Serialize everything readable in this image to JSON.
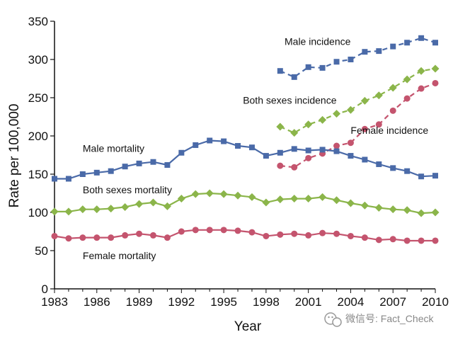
{
  "chart_data": {
    "type": "line",
    "xlabel": "Year",
    "ylabel": "Rate per 100,000",
    "xlim": [
      1983,
      2010
    ],
    "ylim": [
      0,
      350
    ],
    "x_ticks": [
      "1983",
      "1986",
      "1989",
      "1992",
      "1995",
      "1998",
      "2001",
      "2004",
      "2007",
      "2010"
    ],
    "y_ticks": [
      "0",
      "50",
      "100",
      "150",
      "200",
      "250",
      "300",
      "350"
    ],
    "series": [
      {
        "name": "Male incidence",
        "color": "#4a6aa8",
        "marker": "square",
        "dashed": true,
        "x": [
          1999,
          2000,
          2001,
          2002,
          2003,
          2004,
          2005,
          2006,
          2007,
          2008,
          2009,
          2010
        ],
        "values": [
          285,
          277,
          290,
          289,
          297,
          300,
          310,
          311,
          317,
          322,
          328,
          322
        ]
      },
      {
        "name": "Both sexes incidence",
        "color": "#8bb54a",
        "marker": "diamond",
        "dashed": true,
        "x": [
          1999,
          2000,
          2001,
          2002,
          2003,
          2004,
          2005,
          2006,
          2007,
          2008,
          2009,
          2010
        ],
        "values": [
          212,
          204,
          215,
          221,
          229,
          234,
          246,
          253,
          263,
          274,
          285,
          288
        ]
      },
      {
        "name": "Female incidence",
        "color": "#c4546e",
        "marker": "circle",
        "dashed": true,
        "x": [
          1999,
          2000,
          2001,
          2002,
          2003,
          2004,
          2005,
          2006,
          2007,
          2008,
          2009,
          2010
        ],
        "values": [
          161,
          159,
          171,
          177,
          187,
          191,
          209,
          215,
          233,
          249,
          262,
          269
        ]
      },
      {
        "name": "Male mortality",
        "color": "#4a6aa8",
        "marker": "square",
        "dashed": false,
        "x": [
          1983,
          1984,
          1985,
          1986,
          1987,
          1988,
          1989,
          1990,
          1991,
          1992,
          1993,
          1994,
          1995,
          1996,
          1997,
          1998,
          1999,
          2000,
          2001,
          2002,
          2003,
          2004,
          2005,
          2006,
          2007,
          2008,
          2009,
          2010
        ],
        "values": [
          144,
          144,
          150,
          152,
          154,
          160,
          164,
          166,
          162,
          178,
          188,
          194,
          193,
          187,
          185,
          174,
          178,
          183,
          181,
          182,
          180,
          174,
          169,
          163,
          158,
          154,
          147,
          148
        ]
      },
      {
        "name": "Both sexes mortality",
        "color": "#8bb54a",
        "marker": "diamond",
        "dashed": false,
        "x": [
          1983,
          1984,
          1985,
          1986,
          1987,
          1988,
          1989,
          1990,
          1991,
          1992,
          1993,
          1994,
          1995,
          1996,
          1997,
          1998,
          1999,
          2000,
          2001,
          2002,
          2003,
          2004,
          2005,
          2006,
          2007,
          2008,
          2009,
          2010
        ],
        "values": [
          101,
          101,
          104,
          104,
          105,
          107,
          111,
          113,
          108,
          118,
          124,
          125,
          124,
          122,
          120,
          113,
          117,
          118,
          118,
          120,
          116,
          112,
          109,
          106,
          104,
          103,
          99,
          100
        ]
      },
      {
        "name": "Female mortality",
        "color": "#c4546e",
        "marker": "circle",
        "dashed": false,
        "x": [
          1983,
          1984,
          1985,
          1986,
          1987,
          1988,
          1989,
          1990,
          1991,
          1992,
          1993,
          1994,
          1995,
          1996,
          1997,
          1998,
          1999,
          2000,
          2001,
          2002,
          2003,
          2004,
          2005,
          2006,
          2007,
          2008,
          2009,
          2010
        ],
        "values": [
          69,
          66,
          67,
          67,
          67,
          70,
          72,
          70,
          67,
          75,
          77,
          77,
          77,
          76,
          74,
          69,
          71,
          72,
          70,
          73,
          72,
          69,
          67,
          64,
          65,
          63,
          63,
          63
        ]
      }
    ],
    "annotations": [
      {
        "text": "Male incidence",
        "series": "Male incidence",
        "near_year": 2004,
        "offset_rate": 19,
        "anchor": "end"
      },
      {
        "text": "Both sexes incidence",
        "series": "Both sexes incidence",
        "near_year": 2003,
        "offset_rate": 13,
        "anchor": "end"
      },
      {
        "text": "Female incidence",
        "series": "Female incidence",
        "near_year": 2004,
        "offset_rate": 12,
        "anchor": "start"
      },
      {
        "text": "Male mortality",
        "series": "Male mortality",
        "near_year": 1985,
        "offset_rate": 29,
        "anchor": "start"
      },
      {
        "text": "Both sexes mortality",
        "series": "Both sexes mortality",
        "near_year": 1985,
        "offset_rate": 21,
        "anchor": "start"
      },
      {
        "text": "Female mortality",
        "series": "Female mortality",
        "near_year": 1985,
        "offset_rate": -28,
        "anchor": "start"
      }
    ],
    "grid": false,
    "legend": "none"
  },
  "watermark": {
    "text": "微信号: Fact_Check",
    "icon": "wechat-icon"
  }
}
